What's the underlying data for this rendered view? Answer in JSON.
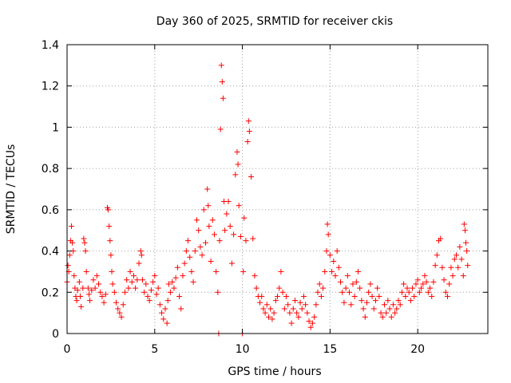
{
  "chart_data": {
    "type": "scatter",
    "title": "Day 360 of 2025, SRMTID for receiver ckis",
    "xlabel": "GPS time / hours",
    "ylabel": "SRMTID / TECUs",
    "xlim": [
      0,
      24
    ],
    "ylim": [
      0,
      1.4
    ],
    "xticks": [
      0,
      5,
      10,
      15,
      20
    ],
    "xtick_labels": [
      "0",
      "5",
      "10",
      "15",
      "20"
    ],
    "yticks": [
      0,
      0.2,
      0.4,
      0.6,
      0.8,
      1.0,
      1.2,
      1.4
    ],
    "ytick_labels": [
      "0",
      "0.2",
      "0.4",
      "0.6",
      "0.8",
      "1",
      "1.2",
      "1.4"
    ],
    "grid": true,
    "marker": "+",
    "color": "#ff0000",
    "series": [
      {
        "name": "ckis",
        "points": [
          [
            0.0,
            0.25
          ],
          [
            0.05,
            0.33
          ],
          [
            0.1,
            0.3
          ],
          [
            0.15,
            0.38
          ],
          [
            0.2,
            0.45
          ],
          [
            0.25,
            0.52
          ],
          [
            0.3,
            0.44
          ],
          [
            0.35,
            0.4
          ],
          [
            0.4,
            0.28
          ],
          [
            0.45,
            0.22
          ],
          [
            0.5,
            0.18
          ],
          [
            0.55,
            0.16
          ],
          [
            0.6,
            0.21
          ],
          [
            0.7,
            0.25
          ],
          [
            0.75,
            0.18
          ],
          [
            0.8,
            0.13
          ],
          [
            0.9,
            0.22
          ],
          [
            0.95,
            0.46
          ],
          [
            1.0,
            0.44
          ],
          [
            1.05,
            0.4
          ],
          [
            1.1,
            0.3
          ],
          [
            1.2,
            0.22
          ],
          [
            1.25,
            0.19
          ],
          [
            1.3,
            0.16
          ],
          [
            1.4,
            0.21
          ],
          [
            1.5,
            0.26
          ],
          [
            1.6,
            0.22
          ],
          [
            1.7,
            0.28
          ],
          [
            1.8,
            0.24
          ],
          [
            1.9,
            0.2
          ],
          [
            2.0,
            0.18
          ],
          [
            2.1,
            0.15
          ],
          [
            2.2,
            0.19
          ],
          [
            2.3,
            0.61
          ],
          [
            2.35,
            0.6
          ],
          [
            2.4,
            0.52
          ],
          [
            2.45,
            0.45
          ],
          [
            2.5,
            0.38
          ],
          [
            2.55,
            0.3
          ],
          [
            2.6,
            0.24
          ],
          [
            2.7,
            0.2
          ],
          [
            2.8,
            0.15
          ],
          [
            2.9,
            0.12
          ],
          [
            3.0,
            0.1
          ],
          [
            3.1,
            0.08
          ],
          [
            3.2,
            0.14
          ],
          [
            3.3,
            0.2
          ],
          [
            3.4,
            0.26
          ],
          [
            3.5,
            0.22
          ],
          [
            3.6,
            0.3
          ],
          [
            3.7,
            0.25
          ],
          [
            3.8,
            0.28
          ],
          [
            3.9,
            0.22
          ],
          [
            4.0,
            0.26
          ],
          [
            4.1,
            0.34
          ],
          [
            4.2,
            0.4
          ],
          [
            4.25,
            0.38
          ],
          [
            4.3,
            0.26
          ],
          [
            4.4,
            0.2
          ],
          [
            4.5,
            0.24
          ],
          [
            4.6,
            0.18
          ],
          [
            4.7,
            0.16
          ],
          [
            4.8,
            0.21
          ],
          [
            4.9,
            0.25
          ],
          [
            5.0,
            0.28
          ],
          [
            5.1,
            0.19
          ],
          [
            5.2,
            0.22
          ],
          [
            5.3,
            0.14
          ],
          [
            5.4,
            0.1
          ],
          [
            5.5,
            0.07
          ],
          [
            5.6,
            0.12
          ],
          [
            5.7,
            0.05
          ],
          [
            5.75,
            0.16
          ],
          [
            5.8,
            0.24
          ],
          [
            5.9,
            0.2
          ],
          [
            6.0,
            0.25
          ],
          [
            6.1,
            0.22
          ],
          [
            6.2,
            0.27
          ],
          [
            6.3,
            0.32
          ],
          [
            6.4,
            0.18
          ],
          [
            6.5,
            0.12
          ],
          [
            6.6,
            0.28
          ],
          [
            6.7,
            0.34
          ],
          [
            6.8,
            0.4
          ],
          [
            6.9,
            0.45
          ],
          [
            7.0,
            0.37
          ],
          [
            7.1,
            0.3
          ],
          [
            7.2,
            0.25
          ],
          [
            7.3,
            0.4
          ],
          [
            7.4,
            0.55
          ],
          [
            7.5,
            0.5
          ],
          [
            7.6,
            0.42
          ],
          [
            7.7,
            0.38
          ],
          [
            7.8,
            0.6
          ],
          [
            7.9,
            0.44
          ],
          [
            8.0,
            0.7
          ],
          [
            8.05,
            0.62
          ],
          [
            8.1,
            0.52
          ],
          [
            8.2,
            0.35
          ],
          [
            8.3,
            0.55
          ],
          [
            8.4,
            0.48
          ],
          [
            8.5,
            0.3
          ],
          [
            8.6,
            0.2
          ],
          [
            8.65,
            0.0
          ],
          [
            8.7,
            0.45
          ],
          [
            8.75,
            0.99
          ],
          [
            8.8,
            1.3
          ],
          [
            8.85,
            1.22
          ],
          [
            8.9,
            1.14
          ],
          [
            8.95,
            0.64
          ],
          [
            9.0,
            0.5
          ],
          [
            9.1,
            0.58
          ],
          [
            9.2,
            0.64
          ],
          [
            9.3,
            0.52
          ],
          [
            9.4,
            0.34
          ],
          [
            9.5,
            0.48
          ],
          [
            9.6,
            0.77
          ],
          [
            9.7,
            0.88
          ],
          [
            9.75,
            0.82
          ],
          [
            9.8,
            0.62
          ],
          [
            9.9,
            0.47
          ],
          [
            10.0,
            0.0
          ],
          [
            10.05,
            0.3
          ],
          [
            10.1,
            0.56
          ],
          [
            10.2,
            0.45
          ],
          [
            10.3,
            0.93
          ],
          [
            10.35,
            1.03
          ],
          [
            10.4,
            0.98
          ],
          [
            10.5,
            0.76
          ],
          [
            10.6,
            0.46
          ],
          [
            10.7,
            0.28
          ],
          [
            10.8,
            0.22
          ],
          [
            10.9,
            0.18
          ],
          [
            11.0,
            0.15
          ],
          [
            11.1,
            0.18
          ],
          [
            11.2,
            0.12
          ],
          [
            11.3,
            0.1
          ],
          [
            11.4,
            0.14
          ],
          [
            11.5,
            0.08
          ],
          [
            11.6,
            0.12
          ],
          [
            11.7,
            0.07
          ],
          [
            11.8,
            0.1
          ],
          [
            11.9,
            0.16
          ],
          [
            12.0,
            0.18
          ],
          [
            12.1,
            0.22
          ],
          [
            12.2,
            0.3
          ],
          [
            12.3,
            0.2
          ],
          [
            12.4,
            0.12
          ],
          [
            12.5,
            0.18
          ],
          [
            12.6,
            0.14
          ],
          [
            12.7,
            0.1
          ],
          [
            12.8,
            0.05
          ],
          [
            12.9,
            0.12
          ],
          [
            13.0,
            0.16
          ],
          [
            13.1,
            0.1
          ],
          [
            13.2,
            0.08
          ],
          [
            13.3,
            0.15
          ],
          [
            13.4,
            0.12
          ],
          [
            13.5,
            0.18
          ],
          [
            13.6,
            0.14
          ],
          [
            13.7,
            0.1
          ],
          [
            13.8,
            0.06
          ],
          [
            13.9,
            0.03
          ],
          [
            14.0,
            0.05
          ],
          [
            14.1,
            0.08
          ],
          [
            14.2,
            0.14
          ],
          [
            14.3,
            0.2
          ],
          [
            14.4,
            0.24
          ],
          [
            14.5,
            0.18
          ],
          [
            14.6,
            0.22
          ],
          [
            14.7,
            0.3
          ],
          [
            14.8,
            0.4
          ],
          [
            14.85,
            0.53
          ],
          [
            14.9,
            0.48
          ],
          [
            15.0,
            0.38
          ],
          [
            15.1,
            0.3
          ],
          [
            15.2,
            0.35
          ],
          [
            15.3,
            0.28
          ],
          [
            15.4,
            0.4
          ],
          [
            15.5,
            0.32
          ],
          [
            15.6,
            0.25
          ],
          [
            15.7,
            0.2
          ],
          [
            15.8,
            0.15
          ],
          [
            15.9,
            0.22
          ],
          [
            16.0,
            0.28
          ],
          [
            16.1,
            0.2
          ],
          [
            16.2,
            0.14
          ],
          [
            16.3,
            0.24
          ],
          [
            16.4,
            0.18
          ],
          [
            16.5,
            0.25
          ],
          [
            16.6,
            0.3
          ],
          [
            16.7,
            0.22
          ],
          [
            16.8,
            0.16
          ],
          [
            16.9,
            0.12
          ],
          [
            17.0,
            0.08
          ],
          [
            17.1,
            0.15
          ],
          [
            17.2,
            0.2
          ],
          [
            17.3,
            0.24
          ],
          [
            17.4,
            0.18
          ],
          [
            17.5,
            0.12
          ],
          [
            17.6,
            0.16
          ],
          [
            17.7,
            0.22
          ],
          [
            17.8,
            0.18
          ],
          [
            17.9,
            0.1
          ],
          [
            18.0,
            0.08
          ],
          [
            18.1,
            0.14
          ],
          [
            18.2,
            0.1
          ],
          [
            18.3,
            0.16
          ],
          [
            18.4,
            0.12
          ],
          [
            18.5,
            0.08
          ],
          [
            18.6,
            0.14
          ],
          [
            18.7,
            0.1
          ],
          [
            18.8,
            0.12
          ],
          [
            18.9,
            0.16
          ],
          [
            19.0,
            0.14
          ],
          [
            19.1,
            0.2
          ],
          [
            19.2,
            0.24
          ],
          [
            19.3,
            0.18
          ],
          [
            19.4,
            0.22
          ],
          [
            19.5,
            0.2
          ],
          [
            19.6,
            0.16
          ],
          [
            19.7,
            0.22
          ],
          [
            19.8,
            0.18
          ],
          [
            19.9,
            0.24
          ],
          [
            20.0,
            0.26
          ],
          [
            20.1,
            0.2
          ],
          [
            20.2,
            0.22
          ],
          [
            20.3,
            0.24
          ],
          [
            20.4,
            0.28
          ],
          [
            20.5,
            0.25
          ],
          [
            20.6,
            0.2
          ],
          [
            20.7,
            0.22
          ],
          [
            20.8,
            0.18
          ],
          [
            20.9,
            0.25
          ],
          [
            21.0,
            0.33
          ],
          [
            21.1,
            0.38
          ],
          [
            21.2,
            0.45
          ],
          [
            21.3,
            0.46
          ],
          [
            21.4,
            0.32
          ],
          [
            21.5,
            0.26
          ],
          [
            21.6,
            0.2
          ],
          [
            21.7,
            0.18
          ],
          [
            21.8,
            0.24
          ],
          [
            21.9,
            0.32
          ],
          [
            22.0,
            0.28
          ],
          [
            22.1,
            0.36
          ],
          [
            22.2,
            0.38
          ],
          [
            22.3,
            0.32
          ],
          [
            22.4,
            0.42
          ],
          [
            22.5,
            0.36
          ],
          [
            22.6,
            0.28
          ],
          [
            22.65,
            0.53
          ],
          [
            22.7,
            0.5
          ],
          [
            22.75,
            0.44
          ],
          [
            22.8,
            0.4
          ],
          [
            22.85,
            0.33
          ]
        ]
      }
    ]
  }
}
